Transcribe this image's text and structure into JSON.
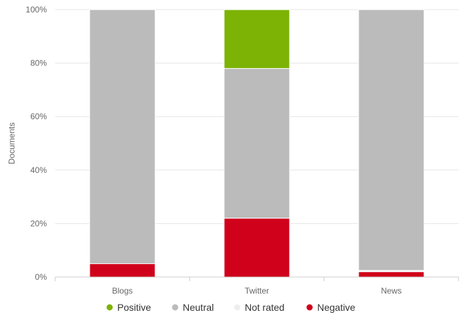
{
  "chart_data": {
    "type": "bar",
    "stacked": true,
    "percent": true,
    "ylabel": "Documents",
    "ylim": [
      0,
      100
    ],
    "y_ticks": [
      "0%",
      "20%",
      "40%",
      "60%",
      "80%",
      "100%"
    ],
    "grid": true,
    "categories": [
      "Blogs",
      "Twitter",
      "News"
    ],
    "series": [
      {
        "name": "Negative",
        "color": "#d0021b",
        "values": [
          5,
          22,
          2
        ]
      },
      {
        "name": "Not rated",
        "color": "#eeeeee",
        "values": [
          0,
          0,
          0.5
        ]
      },
      {
        "name": "Neutral",
        "color": "#bbbbbb",
        "values": [
          95,
          56,
          97.5
        ]
      },
      {
        "name": "Positive",
        "color": "#7cb305",
        "values": [
          0,
          22,
          0
        ]
      }
    ],
    "legend": {
      "placement": "bottom",
      "order": [
        "Positive",
        "Neutral",
        "Not rated",
        "Negative"
      ]
    }
  }
}
